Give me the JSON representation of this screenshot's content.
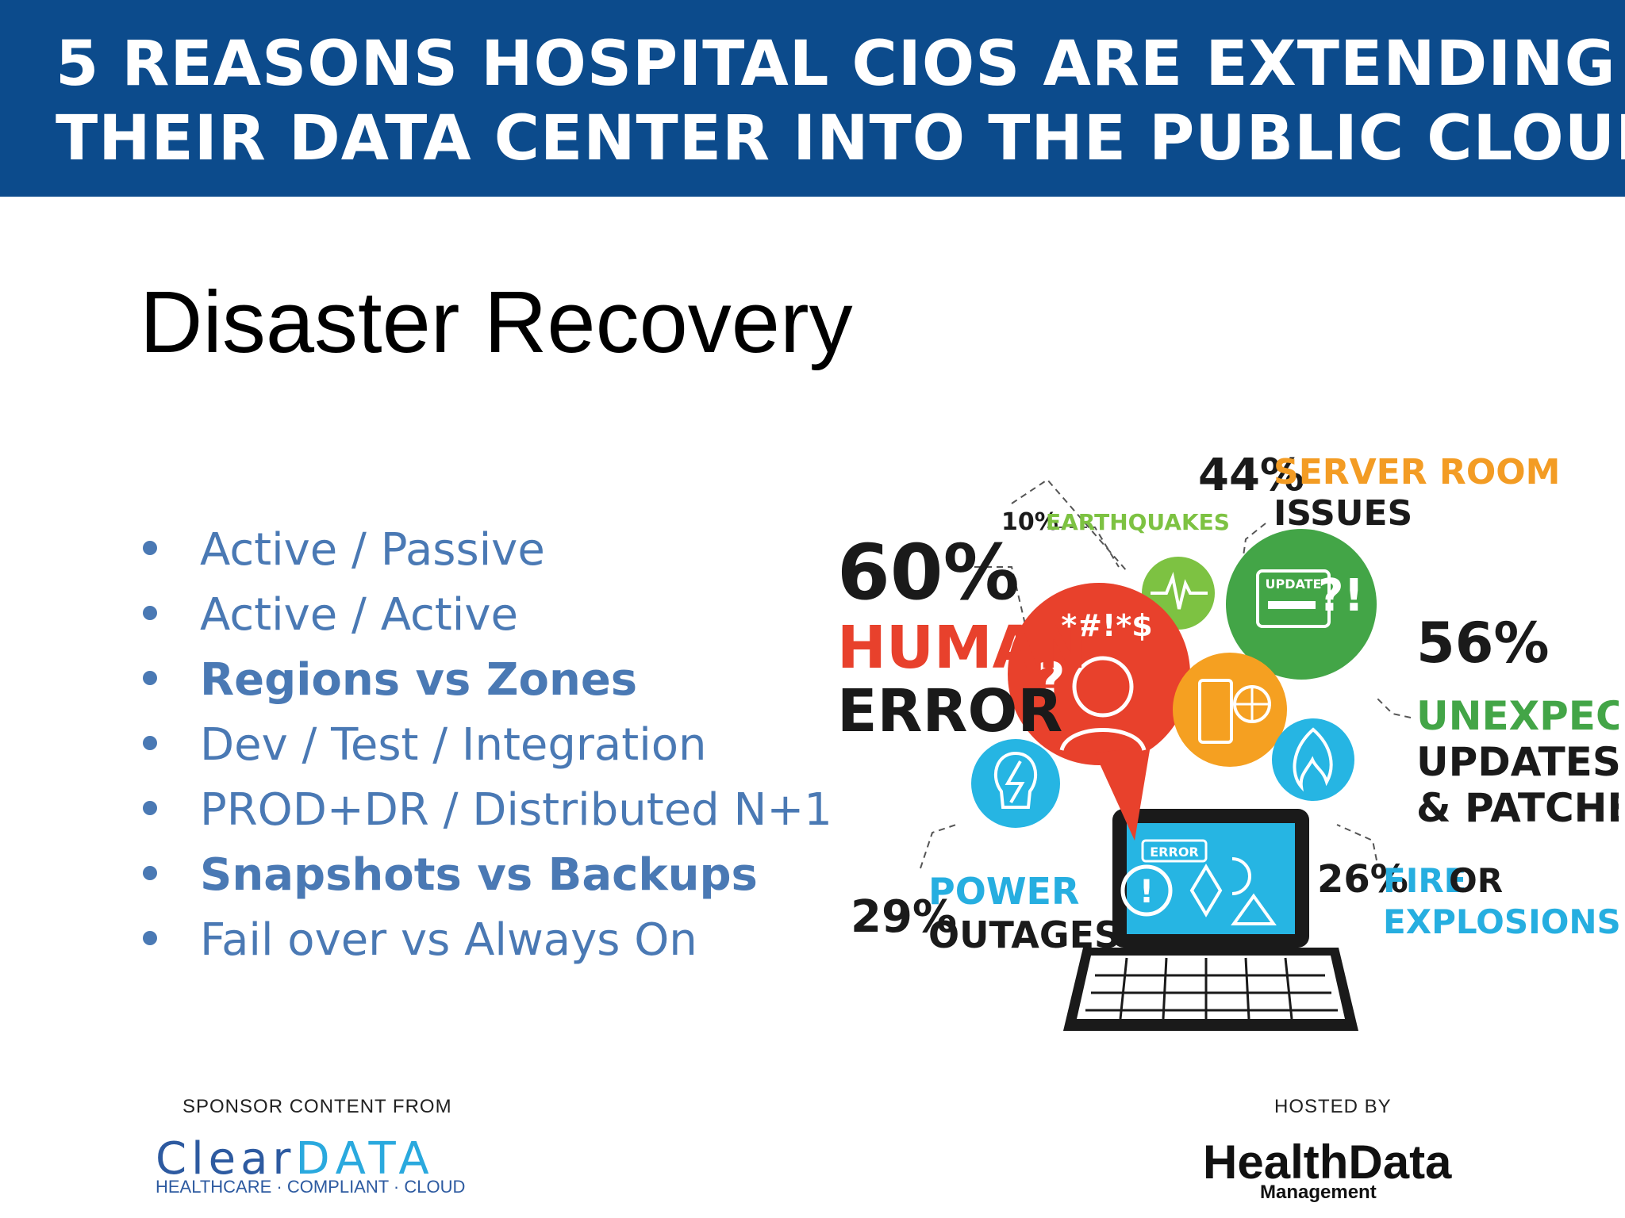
{
  "banner": {
    "line1": "5 REASONS HOSPITAL CIOS ARE EXTENDING",
    "line2": "THEIR DATA CENTER INTO THE PUBLIC CLOUD",
    "background_color": "#0c4b8c"
  },
  "slide": {
    "title": "Disaster Recovery"
  },
  "bullets": [
    {
      "label": "Active / Passive",
      "bold": false
    },
    {
      "label": "Active / Active",
      "bold": false
    },
    {
      "label": "Regions vs Zones",
      "bold": true
    },
    {
      "label": "Dev / Test / Integration",
      "bold": false
    },
    {
      "label": "PROD+DR / Distributed N+1",
      "bold": false
    },
    {
      "label": "Snapshots vs Backups",
      "bold": true
    },
    {
      "label": "Fail over vs Always On",
      "bold": false
    }
  ],
  "bullet_color": "#4a79b4",
  "infographic": {
    "human_error": {
      "pct": "60%",
      "line1": "HUMAN",
      "line2": "ERROR"
    },
    "earthquakes": {
      "pct": "10%",
      "label": "EARTHQUAKES"
    },
    "server_room": {
      "pct": "44%",
      "line1": "SERVER ROOM",
      "line2": "ISSUES"
    },
    "updates": {
      "pct": "56%",
      "line1": "UNEXPECTED",
      "line2": "UPDATES",
      "line3": "& PATCHES"
    },
    "power": {
      "pct": "29%",
      "line1": "POWER",
      "line2": "OUTAGES"
    },
    "fire": {
      "pct": "26%",
      "line1": "FIRE",
      "line1b": "OR",
      "line2": "EXPLOSIONS"
    },
    "icon_text": {
      "swear": "*#!*$",
      "update": "UPDATE",
      "error": "ERROR"
    },
    "colors": {
      "red": "#e8412c",
      "green": "#43a547",
      "light_green": "#7dc242",
      "orange": "#f5a021",
      "teal": "#26b5e3",
      "orange_label": "#f39c24",
      "blue_label": "#26aee0",
      "dark": "#1a1a1a"
    }
  },
  "footer": {
    "sponsor_label": "SPONSOR CONTENT FROM",
    "sponsor_logo_part1": "Clear",
    "sponsor_logo_part2": "DATA",
    "sponsor_tagline": "HEALTHCARE · COMPLIANT · CLOUD",
    "hosted_label": "HOSTED BY",
    "host_logo_main": "HealthData",
    "host_logo_sub": "Management"
  }
}
